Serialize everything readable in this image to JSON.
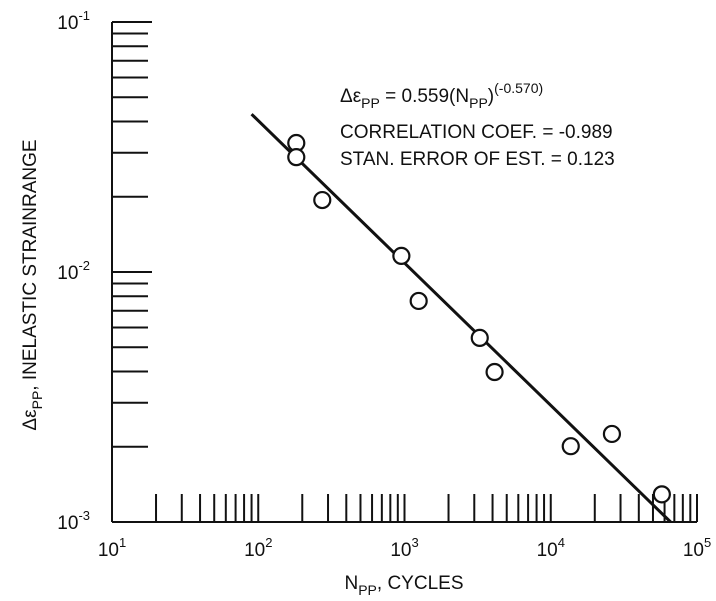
{
  "chart_data": {
    "type": "scatter",
    "x_label": [
      "N",
      "PP",
      ", CYCLES"
    ],
    "y_label": [
      "Δε",
      "PP",
      ", INELASTIC STRAINRANGE"
    ],
    "equation": [
      "Δε",
      "PP",
      " = 0.559(N",
      "PP",
      ")",
      "(-0.570)"
    ],
    "annotations": [
      "CORRELATION COEF. = -0.989",
      "STAN. ERROR OF EST. = 0.123"
    ],
    "x": [
      182,
      182,
      274,
      952,
      1250,
      3270,
      4130,
      13700,
      26200,
      57500
    ],
    "values": [
      0.0328,
      0.0288,
      0.0194,
      0.0116,
      0.00766,
      0.00545,
      0.00398,
      0.00201,
      0.00225,
      0.00129
    ],
    "fit": {
      "x": [
        90,
        66000
      ],
      "values": [
        0.0428,
        0.001
      ]
    },
    "xlim": [
      10,
      100000
    ],
    "ylim": [
      0.001,
      0.1
    ],
    "xticks": [
      {
        "value": 10,
        "label": "10",
        "exponent": "1"
      },
      {
        "value": 100,
        "label": "10",
        "exponent": "2"
      },
      {
        "value": 1000,
        "label": "10",
        "exponent": "3"
      },
      {
        "value": 10000,
        "label": "10",
        "exponent": "4"
      },
      {
        "value": 100000,
        "label": "10",
        "exponent": "5"
      }
    ],
    "yticks": [
      {
        "value": 0.001,
        "label": "10",
        "exponent": "-3"
      },
      {
        "value": 0.01,
        "label": "10",
        "exponent": "-2"
      },
      {
        "value": 0.1,
        "label": "10",
        "exponent": "-1"
      }
    ],
    "log_x": true,
    "log_y": true,
    "minor_ticks": true,
    "color": "#111111"
  }
}
